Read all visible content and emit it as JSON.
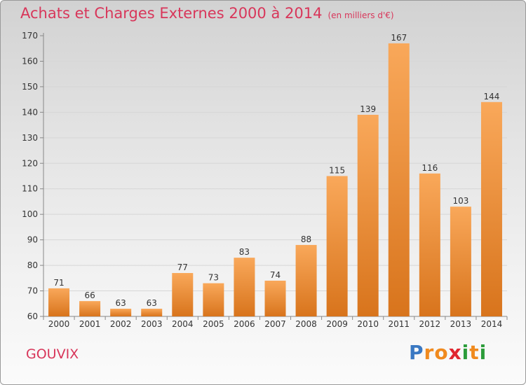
{
  "header": {
    "title": "Achats et Charges Externes 2000 à 2014",
    "unit": "(en milliers d'€)"
  },
  "footer": {
    "commune": "GOUVIX",
    "brand_letters": [
      "P",
      "r",
      "o",
      "x",
      "i",
      "t",
      "i"
    ],
    "brand_colors": [
      "#3a78c2",
      "#f08a1e",
      "#f08a1e",
      "#e0262f",
      "#2c9c3a",
      "#f08a1e",
      "#2c9c3a"
    ]
  },
  "colors": {
    "bar_light": "#f9a85a",
    "bar_dark": "#d8741c",
    "title": "#d8365a",
    "grid": "#d6d6d6",
    "axis_text": "#333333"
  },
  "chart_data": {
    "type": "bar",
    "categories": [
      "2000",
      "2001",
      "2002",
      "2003",
      "2004",
      "2005",
      "2006",
      "2007",
      "2008",
      "2009",
      "2010",
      "2011",
      "2012",
      "2013",
      "2014"
    ],
    "values": [
      71,
      66,
      63,
      63,
      77,
      73,
      83,
      74,
      88,
      115,
      139,
      167,
      116,
      103,
      144
    ],
    "ylim": [
      60,
      170
    ],
    "yticks": [
      60,
      70,
      80,
      90,
      100,
      110,
      120,
      130,
      140,
      150,
      160,
      170
    ],
    "grid": true
  }
}
